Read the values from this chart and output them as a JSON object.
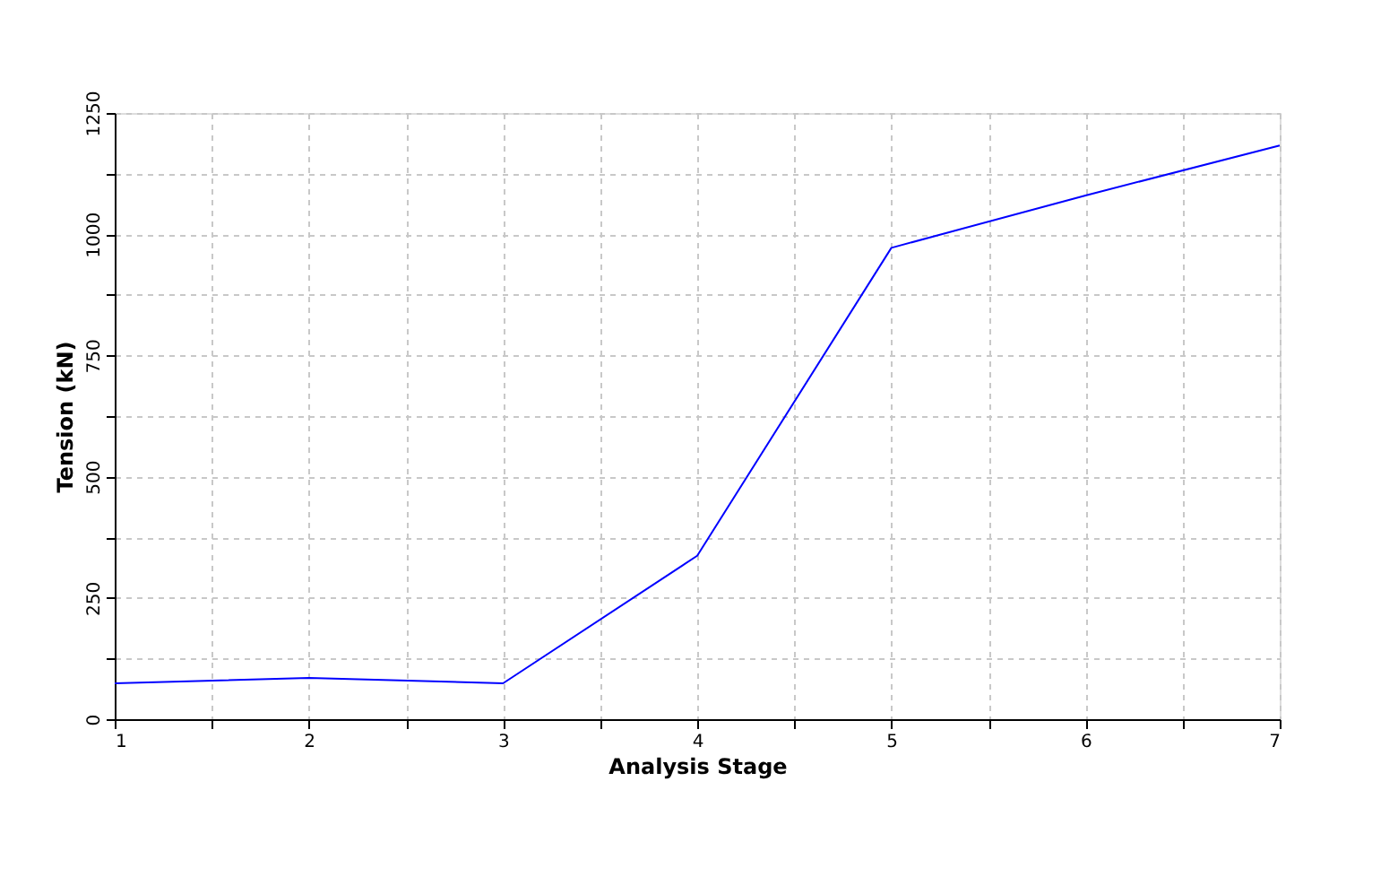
{
  "chart_data": {
    "type": "line",
    "xlabel": "Analysis Stage",
    "ylabel": "Tension (kN)",
    "x": [
      1,
      2,
      3,
      4,
      5,
      6,
      7
    ],
    "series": [
      {
        "color": "#0000ff",
        "values": [
          74,
          85,
          74,
          337,
          972,
          1080,
          1183
        ]
      }
    ],
    "xlim": [
      1,
      7
    ],
    "xticks": [
      1,
      {
        "value": 1.5,
        "label": null
      },
      2,
      {
        "value": 2.5,
        "label": null
      },
      3,
      {
        "value": 3.5,
        "label": null
      },
      4,
      {
        "value": 4.5,
        "label": null
      },
      5,
      {
        "value": 5.5,
        "label": null
      },
      6,
      {
        "value": 6.5,
        "label": null
      },
      7
    ],
    "ylim": [
      0,
      1250
    ],
    "yticks": [
      0,
      {
        "value": 125,
        "label": null
      },
      250,
      {
        "value": 375,
        "label": null
      },
      500,
      {
        "value": 625,
        "label": null
      },
      750,
      {
        "value": 875,
        "label": null
      },
      1000,
      {
        "value": 1125,
        "label": null
      },
      1250
    ],
    "grid": true,
    "marker": "none",
    "line_style": "solid",
    "legend": false
  }
}
